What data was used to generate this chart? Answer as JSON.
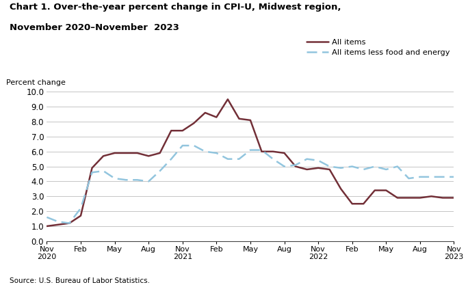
{
  "title_line1": "Chart 1. Over-the-year percent change in CPI-U, Midwest region,",
  "title_line2": "November 2020–November  2023",
  "ylabel": "Percent change",
  "source": "Source: U.S. Bureau of Labor Statistics.",
  "all_items_color": "#722F37",
  "core_items_color": "#92C5DE",
  "all_items_label": "All items",
  "core_items_label": "All items less food and energy",
  "ylim": [
    0.0,
    10.0
  ],
  "yticks": [
    0.0,
    1.0,
    2.0,
    3.0,
    4.0,
    5.0,
    6.0,
    7.0,
    8.0,
    9.0,
    10.0
  ],
  "x_tick_labels": [
    "Nov\n2020",
    "Feb",
    "May",
    "Aug",
    "Nov\n2021",
    "Feb",
    "May",
    "Aug",
    "Nov\n2022",
    "Feb",
    "May",
    "Aug",
    "Nov\n2023"
  ],
  "x_tick_positions": [
    0,
    3,
    6,
    9,
    12,
    15,
    18,
    21,
    24,
    27,
    30,
    33,
    36
  ],
  "all_items_x": [
    0,
    1,
    2,
    3,
    4,
    5,
    6,
    7,
    8,
    9,
    10,
    11,
    12,
    13,
    14,
    15,
    16,
    17,
    18,
    19,
    20,
    21,
    22,
    23,
    24,
    25,
    26,
    27,
    28,
    29,
    30,
    31,
    32,
    33,
    34,
    35,
    36
  ],
  "all_items_y": [
    1.0,
    1.1,
    1.2,
    1.7,
    4.9,
    5.7,
    5.9,
    5.9,
    5.9,
    5.7,
    5.9,
    7.4,
    7.4,
    7.9,
    8.6,
    8.3,
    9.5,
    8.2,
    8.1,
    6.0,
    6.0,
    5.9,
    5.0,
    4.8,
    4.9,
    4.8,
    3.5,
    2.5,
    2.5,
    3.4,
    3.4,
    2.9,
    2.9,
    2.9,
    3.0,
    2.9,
    2.9
  ],
  "core_items_x": [
    0,
    1,
    2,
    3,
    4,
    5,
    6,
    7,
    8,
    9,
    10,
    11,
    12,
    13,
    14,
    15,
    16,
    17,
    18,
    19,
    20,
    21,
    22,
    23,
    24,
    25,
    26,
    27,
    28,
    29,
    30,
    31,
    32,
    33,
    34,
    35,
    36
  ],
  "core_items_y": [
    1.6,
    1.3,
    1.2,
    2.2,
    4.6,
    4.7,
    4.2,
    4.1,
    4.1,
    4.0,
    4.7,
    5.5,
    6.4,
    6.4,
    6.0,
    5.9,
    5.5,
    5.5,
    6.1,
    6.1,
    5.5,
    5.0,
    5.1,
    5.5,
    5.4,
    5.0,
    4.9,
    5.0,
    4.8,
    5.0,
    4.8,
    5.0,
    4.2,
    4.3,
    4.3,
    4.3,
    4.3
  ]
}
